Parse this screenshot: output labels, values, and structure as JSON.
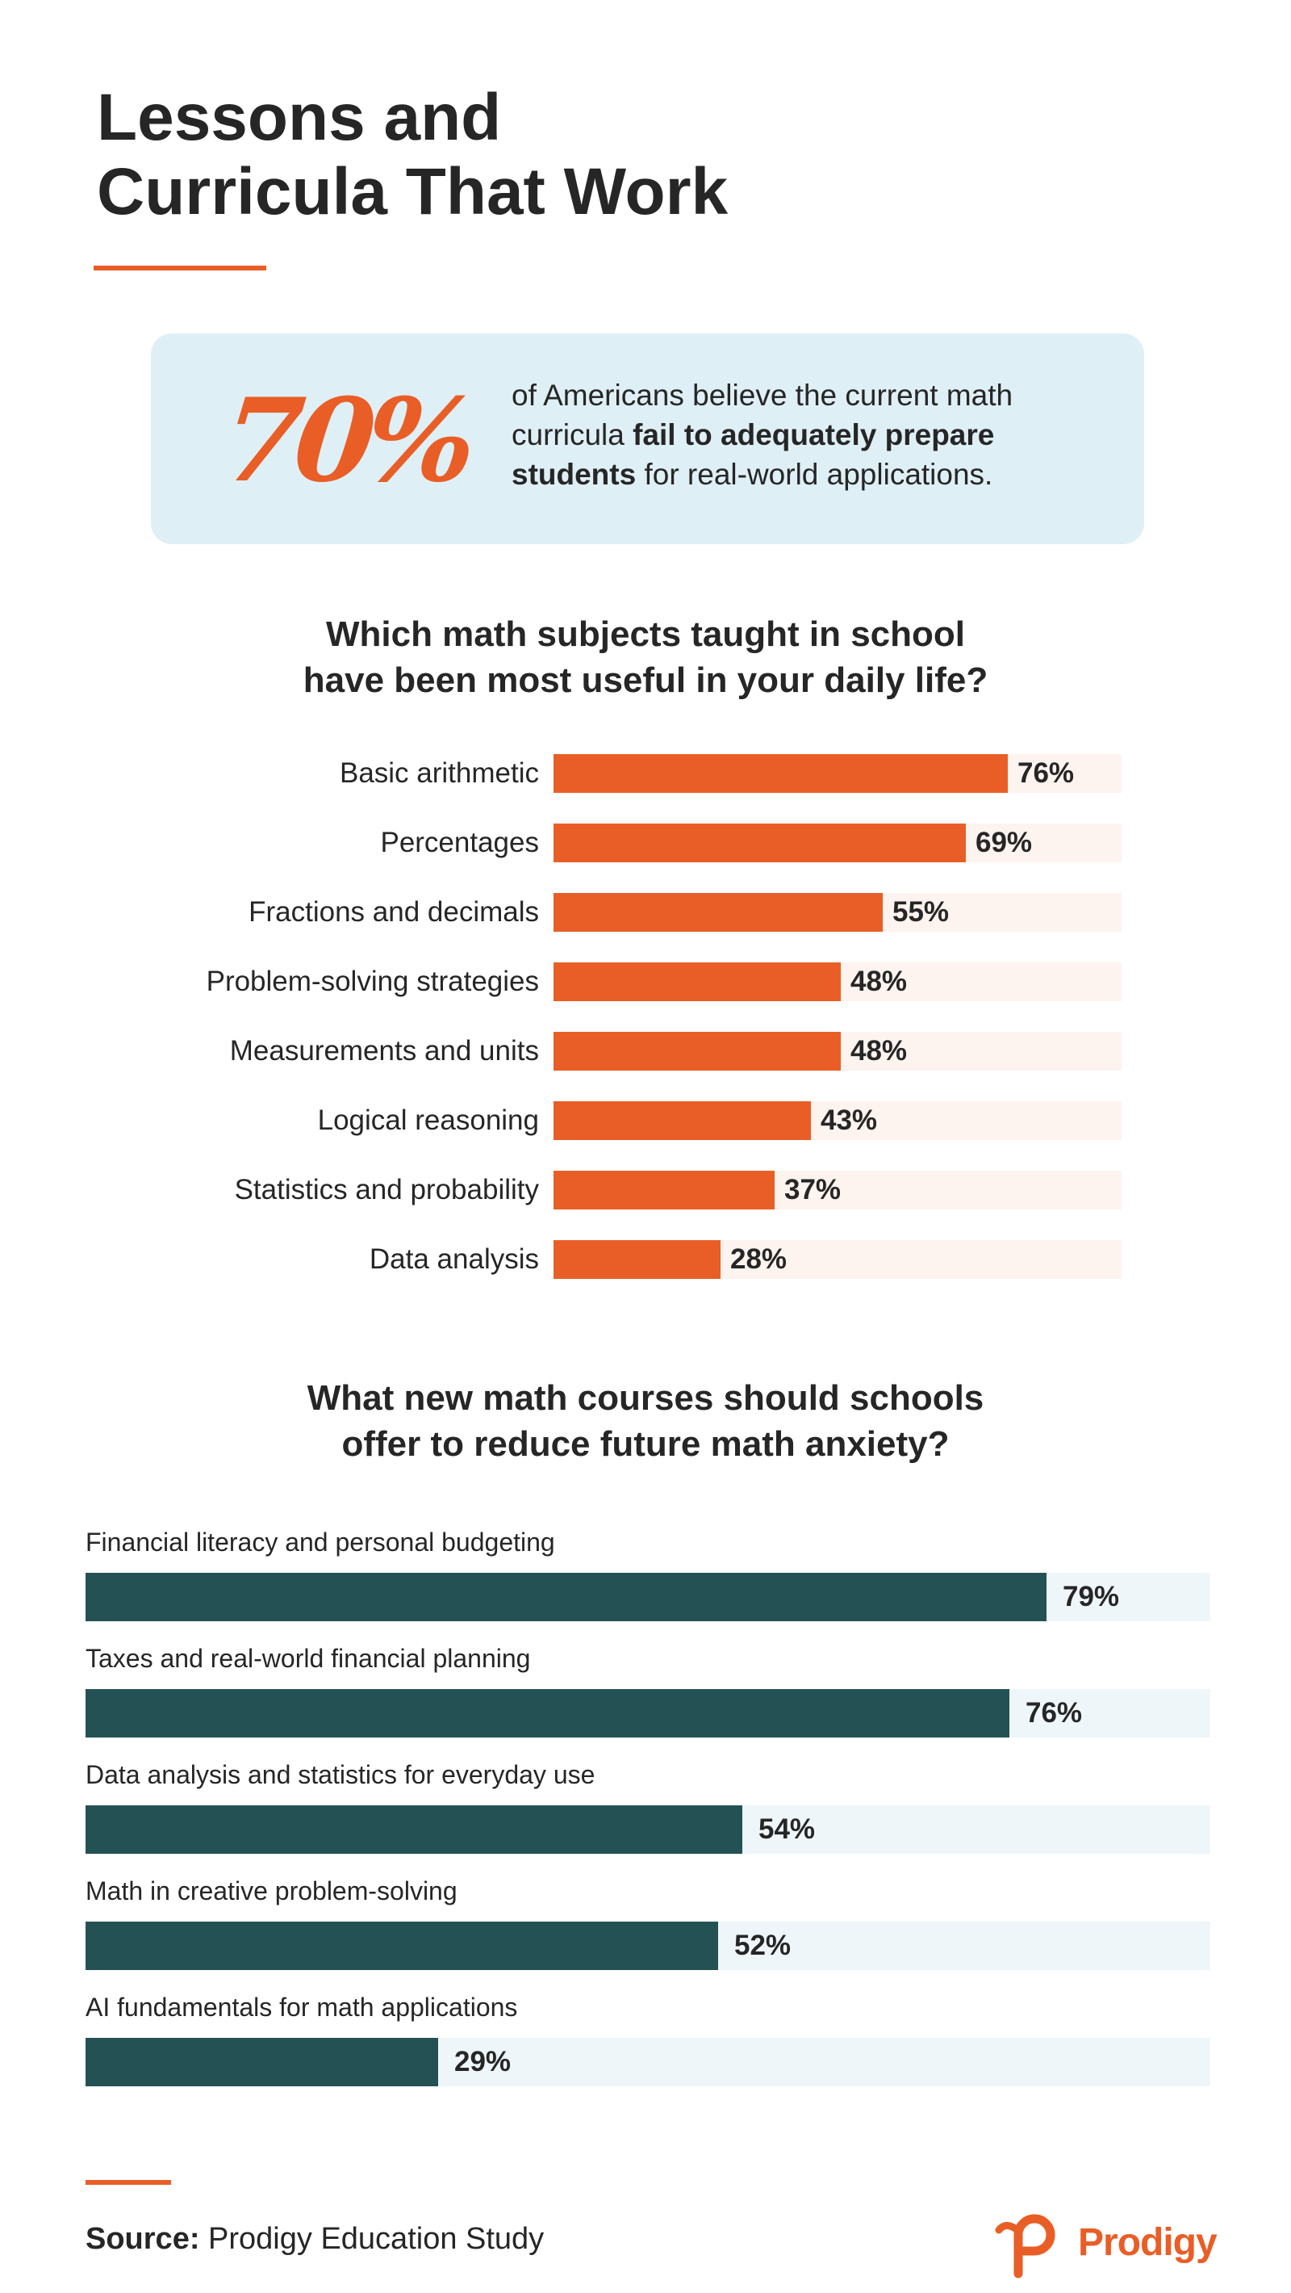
{
  "title": {
    "line1": "Lessons and",
    "line2": "Curricula That Work"
  },
  "callout": {
    "stat": "70%",
    "text_pre": "of Americans believe the current math curricula ",
    "text_bold": "fail to adequately prepare students",
    "text_post": " for real-world applications."
  },
  "question1": {
    "line1": "Which math subjects taught in school",
    "line2": "have been most useful in your daily life?"
  },
  "question2": {
    "line1": "What new math courses should schools",
    "line2": "offer to reduce future math anxiety?"
  },
  "chart_data": [
    {
      "type": "bar",
      "orientation": "horizontal",
      "title": "Which math subjects taught in school have been most useful in your daily life?",
      "categories": [
        "Basic arithmetic",
        "Percentages",
        "Fractions and decimals",
        "Problem-solving strategies",
        "Measurements and units",
        "Logical reasoning",
        "Statistics and probability",
        "Data analysis"
      ],
      "values": [
        76,
        69,
        55,
        48,
        48,
        43,
        37,
        28
      ],
      "labels": [
        "76%",
        "69%",
        "55%",
        "48%",
        "48%",
        "43%",
        "37%",
        "28%"
      ],
      "xlim": [
        0,
        95
      ],
      "color": "#E95E26",
      "track_color": "#FDF3EF"
    },
    {
      "type": "bar",
      "orientation": "horizontal",
      "title": "What new math courses should schools offer to reduce future math anxiety?",
      "categories": [
        "Financial literacy and personal budgeting",
        "Taxes and real-world financial planning",
        "Data analysis and statistics for everyday use",
        "Math in creative problem-solving",
        "AI fundamentals for math applications"
      ],
      "values": [
        79,
        76,
        54,
        52,
        29
      ],
      "labels": [
        "79%",
        "76%",
        "54%",
        "52%",
        "29%"
      ],
      "xlim": [
        0,
        92.5
      ],
      "color": "#245254",
      "track_color": "#EFF6FA"
    }
  ],
  "source": {
    "label": "Source:",
    "text": " Prodigy Education Study"
  },
  "logo": {
    "word": "Prodigy",
    "icon": "prodigy-logo-icon"
  },
  "colors": {
    "accent": "#E95E26",
    "teal": "#245254",
    "callout_bg": "#DFEFF6",
    "text": "#262626"
  }
}
